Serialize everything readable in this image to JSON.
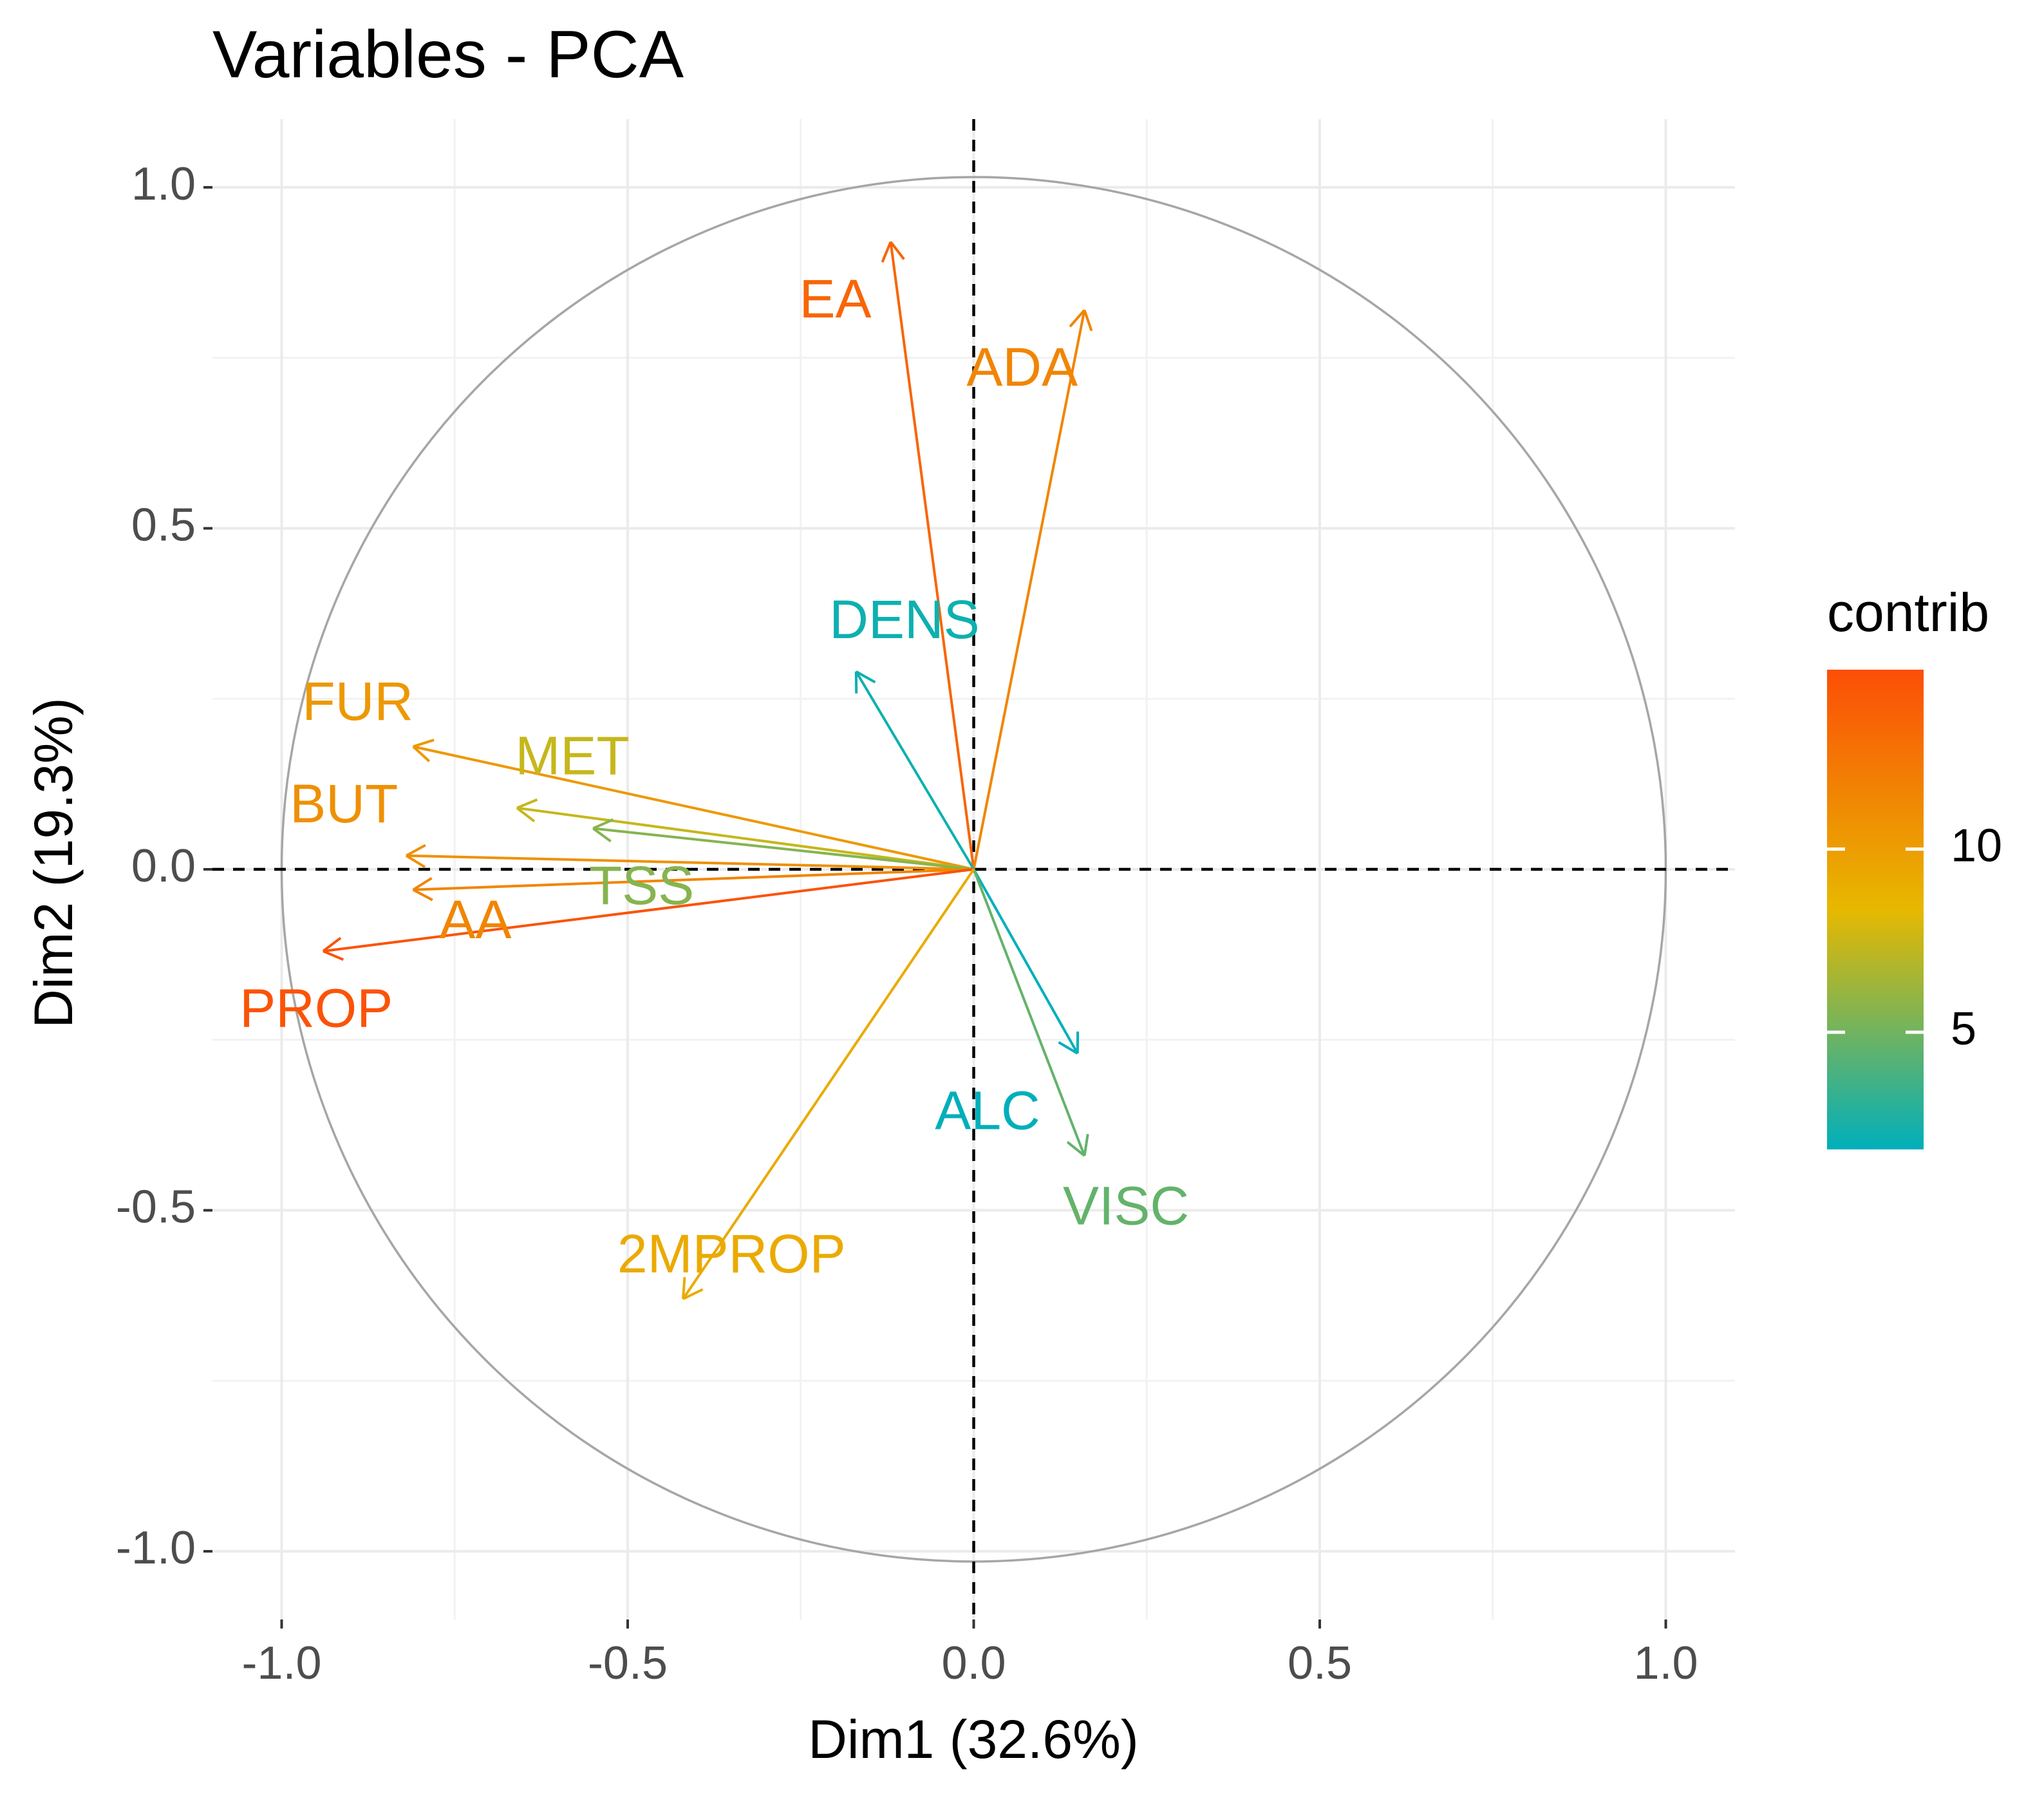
{
  "chart_data": {
    "type": "pca_variable_correlation_circle",
    "title": "Variables - PCA",
    "xlabel": "Dim1 (32.6%)",
    "ylabel": "Dim2 (19.3%)",
    "xlim": [
      -1.1,
      1.1
    ],
    "ylim": [
      -1.1,
      1.1
    ],
    "x_ticks": [
      -1.0,
      -0.5,
      0.0,
      0.5,
      1.0
    ],
    "y_ticks": [
      -1.0,
      -0.5,
      0.0,
      0.5,
      1.0
    ],
    "x_tick_labels": [
      "-1.0",
      "-0.5",
      "0.0",
      "0.5",
      "1.0"
    ],
    "y_tick_labels": [
      "-1.0",
      "-0.5",
      "0.0",
      "0.5",
      "1.0"
    ],
    "grid": true,
    "unit_circle": true,
    "variables": [
      {
        "name": "EA",
        "x": -0.12,
        "y": 0.92,
        "contrib": 13.5,
        "label_x": -0.2,
        "label_y": 0.83
      },
      {
        "name": "ADA",
        "x": 0.16,
        "y": 0.82,
        "contrib": 11.5,
        "label_x": 0.07,
        "label_y": 0.73
      },
      {
        "name": "DENS",
        "x": -0.17,
        "y": 0.29,
        "contrib": 2.2,
        "label_x": -0.1,
        "label_y": 0.36
      },
      {
        "name": "FUR",
        "x": -0.81,
        "y": 0.18,
        "contrib": 10.3,
        "label_x": -0.89,
        "label_y": 0.24
      },
      {
        "name": "MET",
        "x": -0.66,
        "y": 0.09,
        "contrib": 7.4,
        "label_x": -0.58,
        "label_y": 0.16
      },
      {
        "name": "BUT",
        "x": -0.82,
        "y": 0.02,
        "contrib": 10.8,
        "label_x": -0.91,
        "label_y": 0.09
      },
      {
        "name": "TSS",
        "x": -0.55,
        "y": 0.06,
        "contrib": 5.6,
        "label_x": -0.48,
        "label_y": -0.03
      },
      {
        "name": "AA",
        "x": -0.81,
        "y": -0.03,
        "contrib": 11.5,
        "label_x": -0.72,
        "label_y": -0.08
      },
      {
        "name": "PROP",
        "x": -0.94,
        "y": -0.12,
        "contrib": 14.6,
        "label_x": -0.95,
        "label_y": -0.21
      },
      {
        "name": "ALC",
        "x": 0.15,
        "y": -0.27,
        "contrib": 1.8,
        "label_x": 0.02,
        "label_y": -0.36
      },
      {
        "name": "VISC",
        "x": 0.16,
        "y": -0.42,
        "contrib": 4.6,
        "label_x": 0.22,
        "label_y": -0.5
      },
      {
        "name": "2MPROP",
        "x": -0.42,
        "y": -0.63,
        "contrib": 9.2,
        "label_x": -0.35,
        "label_y": -0.57
      }
    ],
    "legend": {
      "title": "contrib",
      "position": "right",
      "range": [
        1.8,
        14.9
      ],
      "ticks": [
        5,
        10
      ],
      "tick_labels": [
        "5",
        "10"
      ],
      "gradient": [
        "#00AFBB",
        "#E7B800",
        "#FC4E07"
      ]
    }
  }
}
